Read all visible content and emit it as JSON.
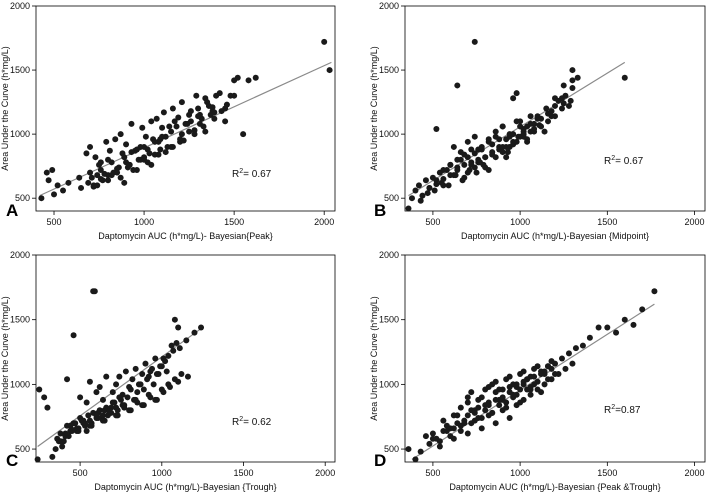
{
  "colors": {
    "points": "#1a1a1a",
    "fit_line": "#8a8a8a",
    "axes": "#000000",
    "background": "#ffffff"
  },
  "panels": [
    {
      "letter": "A",
      "xlabel": "Daptomycin AUC (h*mg/L)- Bayesian{Peak}",
      "ylabel": "Area Under the Curve (h*mg/L)",
      "r2_value": "0.67",
      "r2_suffix": "= 0.67"
    },
    {
      "letter": "B",
      "xlabel": "Daptomycin AUC (h*mg/L)-Bayesian {Midpoint}",
      "ylabel": "Area Under the Curve (h*mg/L)",
      "r2_value": "0.67",
      "r2_suffix": "= 0.67"
    },
    {
      "letter": "C",
      "xlabel": "Daptomycin AUC (h*mg/L)-Bayesian {Trough}",
      "ylabel": "Area Under the Curve (h*mg/L)",
      "r2_value": "0.62",
      "r2_suffix": "= 0.62"
    },
    {
      "letter": "D",
      "xlabel": "Daptomycin AUC (h*mg/L)-Bayesian {Peak &Trough}",
      "ylabel": "Area Under the Curve (h*mg/L)",
      "r2_value": "0.87",
      "r2_suffix": "=0.87"
    }
  ],
  "chart_data": [
    {
      "type": "scatter",
      "panel": "A",
      "xlabel": "Daptomycin AUC (h*mg/L)- Bayesian{Peak}",
      "ylabel": "Area Under the Curve (h*mg/L)",
      "xlim": [
        400,
        2060
      ],
      "ylim": [
        400,
        2000
      ],
      "xticks": [
        500,
        1000,
        1500,
        2000
      ],
      "yticks": [
        500,
        1000,
        1500,
        2000
      ],
      "annotation": "R² = 0.67",
      "fit_line": {
        "x": [
          420,
          2040
        ],
        "y": [
          520,
          1560
        ]
      },
      "points": {
        "x": [
          430,
          470,
          490,
          520,
          460,
          500,
          550,
          580,
          640,
          700,
          720,
          750,
          760,
          800,
          820,
          850,
          880,
          900,
          920,
          950,
          980,
          1000,
          1020,
          1050,
          1080,
          1100,
          1120,
          1150,
          1170,
          1200,
          1230,
          1250,
          1280,
          1300,
          1320,
          1350,
          1380,
          1400,
          1450,
          1480,
          1500,
          1520,
          1550,
          1580,
          1620,
          2000,
          2030,
          680,
          700,
          730,
          760,
          790,
          810,
          840,
          870,
          900,
          930,
          960,
          990,
          1010,
          1040,
          1070,
          1090,
          1110,
          1140,
          1160,
          1190,
          1210,
          1240,
          1260,
          1290,
          1310,
          1340,
          1360,
          1390,
          1420,
          1460,
          760,
          780,
          820,
          860,
          890,
          930,
          970,
          1000,
          1030,
          1060,
          1100,
          1130,
          1180,
          1210,
          1260,
          1300,
          1340,
          1380,
          1430,
          1500,
          720,
          740,
          800,
          830,
          870,
          910,
          940,
          980,
          1020,
          1060,
          1090,
          1150,
          1200,
          1250,
          1310,
          1370,
          650,
          690,
          710,
          740,
          770,
          800,
          850,
          890,
          920,
          960,
          1000,
          1040,
          1080,
          1120,
          1160,
          1220,
          1280,
          1330,
          1390,
          1450
        ],
        "y": [
          500,
          640,
          720,
          600,
          700,
          530,
          560,
          620,
          660,
          700,
          590,
          760,
          650,
          800,
          680,
          730,
          850,
          780,
          760,
          870,
          900,
          820,
          880,
          960,
          940,
          1050,
          980,
          1020,
          1100,
          960,
          1080,
          1150,
          1030,
          1200,
          1120,
          1250,
          1180,
          1300,
          1100,
          1300,
          1420,
          1440,
          1000,
          1420,
          1440,
          1720,
          1500,
          850,
          900,
          820,
          780,
          940,
          870,
          960,
          1000,
          920,
          1080,
          880,
          1050,
          980,
          1100,
          1120,
          960,
          1170,
          1060,
          1200,
          1130,
          1250,
          1080,
          1180,
          1300,
          1150,
          1280,
          1220,
          1170,
          1320,
          1230,
          720,
          690,
          780,
          740,
          820,
          860,
          800,
          900,
          850,
          940,
          980,
          900,
          1060,
          1000,
          1100,
          1140,
          1020,
          1210,
          1180,
          1300,
          600,
          680,
          640,
          700,
          660,
          740,
          720,
          800,
          780,
          840,
          880,
          900,
          940,
          1020,
          1080,
          1150,
          580,
          620,
          660,
          600,
          640,
          680,
          700,
          620,
          760,
          720,
          800,
          760,
          840,
          860,
          900,
          950,
          1000,
          1060,
          1120,
          1200
        ]
      }
    },
    {
      "type": "scatter",
      "panel": "B",
      "xlabel": "Daptomycin AUC (h*mg/L)-Bayesian {Midpoint}",
      "ylabel": "Area Under the Curve (h*mg/L)",
      "xlim": [
        340,
        2060
      ],
      "ylim": [
        400,
        2000
      ],
      "xticks": [
        500,
        1000,
        1500,
        2000
      ],
      "yticks": [
        500,
        1000,
        1500,
        2000
      ],
      "annotation": "R² = 0.67",
      "fit_line": {
        "x": [
          360,
          1600
        ],
        "y": [
          520,
          1560
        ]
      },
      "points": {
        "x": [
          360,
          380,
          400,
          420,
          440,
          460,
          480,
          500,
          520,
          540,
          560,
          580,
          600,
          620,
          640,
          660,
          680,
          700,
          720,
          740,
          760,
          780,
          800,
          820,
          840,
          860,
          880,
          900,
          920,
          940,
          960,
          980,
          1000,
          1020,
          1040,
          1060,
          1080,
          1100,
          1150,
          1200,
          1250,
          1300,
          1330,
          1600,
          740,
          640,
          520,
          620,
          660,
          700,
          740,
          780,
          820,
          860,
          900,
          940,
          980,
          1020,
          1060,
          1100,
          1140,
          1180,
          1220,
          1260,
          1300,
          560,
          600,
          640,
          680,
          720,
          760,
          800,
          840,
          880,
          920,
          960,
          1000,
          1040,
          1080,
          1120,
          1160,
          1200,
          1240,
          1280,
          480,
          520,
          560,
          600,
          640,
          680,
          720,
          760,
          800,
          840,
          880,
          920,
          960,
          1000,
          1040,
          1080,
          1120,
          1160,
          1200,
          1250,
          1300,
          900,
          930,
          960,
          990,
          1020,
          700,
          740,
          770,
          820,
          860,
          900,
          940,
          980,
          1020,
          1060,
          1110,
          1180,
          1240,
          1290,
          430,
          470,
          510,
          550,
          590,
          630,
          670,
          710,
          750,
          790
        ],
        "y": [
          420,
          500,
          560,
          600,
          520,
          640,
          580,
          660,
          610,
          700,
          650,
          720,
          760,
          680,
          740,
          800,
          760,
          820,
          880,
          850,
          780,
          900,
          820,
          940,
          860,
          980,
          900,
          1060,
          960,
          1000,
          1280,
          1320,
          1100,
          1040,
          1060,
          1140,
          1080,
          1120,
          1200,
          1280,
          1380,
          1500,
          1440,
          1440,
          1720,
          1380,
          1040,
          900,
          860,
          940,
          980,
          880,
          960,
          1020,
          1060,
          980,
          1100,
          1020,
          1080,
          1140,
          1020,
          1180,
          1260,
          1300,
          1420,
          720,
          760,
          800,
          840,
          780,
          880,
          820,
          920,
          960,
          900,
          1000,
          1060,
          960,
          1040,
          1120,
          1160,
          1220,
          1280,
          1220,
          580,
          640,
          600,
          680,
          720,
          660,
          760,
          800,
          740,
          840,
          880,
          820,
          920,
          980,
          940,
          1020,
          1060,
          1100,
          1140,
          1240,
          1360,
          900,
          860,
          940,
          980,
          1000,
          700,
          740,
          780,
          720,
          820,
          860,
          900,
          940,
          980,
          1020,
          1070,
          1140,
          1200,
          1260,
          480,
          540,
          560,
          620,
          600,
          680,
          640,
          720,
          700,
          760
        ]
      }
    },
    {
      "type": "scatter",
      "panel": "C",
      "xlabel": "Daptomycin AUC (h*mg/L)-Bayesian {Trough}",
      "ylabel": "Area Under the Curve (h*mg/L)",
      "xlim": [
        230,
        2060
      ],
      "ylim": [
        400,
        2000
      ],
      "xticks": [
        500,
        1000,
        1500,
        2000
      ],
      "yticks": [
        500,
        1000,
        1500,
        2000
      ],
      "annotation": "R² = 0.62",
      "fit_line": {
        "x": [
          240,
          1250
        ],
        "y": [
          520,
          1440
        ]
      },
      "points": {
        "x": [
          240,
          250,
          280,
          300,
          330,
          350,
          370,
          390,
          410,
          430,
          450,
          470,
          490,
          510,
          530,
          550,
          570,
          590,
          610,
          630,
          650,
          670,
          690,
          710,
          730,
          750,
          770,
          790,
          810,
          830,
          850,
          870,
          890,
          910,
          930,
          950,
          970,
          990,
          1010,
          1030,
          1060,
          1080,
          1100,
          1150,
          1200,
          1240,
          580,
          460,
          420,
          500,
          540,
          560,
          600,
          620,
          640,
          660,
          700,
          720,
          740,
          760,
          780,
          800,
          820,
          840,
          860,
          880,
          900,
          920,
          940,
          960,
          980,
          1000,
          1020,
          1040,
          1070,
          1090,
          1110,
          360,
          380,
          400,
          420,
          440,
          460,
          480,
          500,
          520,
          540,
          560,
          580,
          600,
          620,
          640,
          660,
          680,
          700,
          720,
          740,
          440,
          480,
          520,
          560,
          600,
          640,
          680,
          720,
          760,
          800,
          840,
          880,
          920,
          960,
          1000,
          1040,
          1080,
          1120,
          380,
          410,
          450,
          490,
          530,
          570,
          610,
          650,
          690,
          730,
          770,
          810,
          850,
          890,
          930,
          970,
          1010,
          1050,
          1100,
          1160
        ],
        "y": [
          420,
          960,
          900,
          820,
          440,
          500,
          560,
          520,
          620,
          600,
          650,
          700,
          640,
          720,
          680,
          760,
          700,
          1720,
          780,
          740,
          800,
          760,
          820,
          860,
          800,
          880,
          840,
          900,
          960,
          880,
          940,
          1000,
          960,
          1040,
          1100,
          1000,
          1080,
          1140,
          1200,
          1100,
          1300,
          1500,
          1440,
          1340,
          1400,
          1440,
          1720,
          1380,
          1040,
          900,
          860,
          1020,
          940,
          980,
          880,
          1060,
          940,
          1000,
          1060,
          920,
          1100,
          980,
          1040,
          1120,
          1000,
          1080,
          1160,
          1060,
          1120,
          1200,
          1080,
          1140,
          1180,
          1220,
          1260,
          1320,
          1280,
          580,
          620,
          560,
          680,
          640,
          700,
          660,
          740,
          700,
          640,
          720,
          780,
          740,
          800,
          760,
          820,
          780,
          860,
          820,
          900,
          680,
          640,
          720,
          680,
          760,
          720,
          800,
          760,
          840,
          800,
          880,
          840,
          920,
          880,
          960,
          1000,
          1040,
          1080,
          560,
          600,
          640,
          660,
          700,
          680,
          740,
          720,
          780,
          760,
          820,
          800,
          860,
          840,
          900,
          880,
          940,
          980,
          1020,
          1060
        ]
      }
    },
    {
      "type": "scatter",
      "panel": "D",
      "xlabel": "Daptomycin AUC (h*mg/L)-Bayesian {Peak &Trough}",
      "ylabel": "Area Under the Curve (h*mg/L)",
      "xlim": [
        340,
        2060
      ],
      "ylim": [
        400,
        2000
      ],
      "xticks": [
        500,
        1000,
        1500,
        2000
      ],
      "yticks": [
        500,
        1000,
        1500,
        2000
      ],
      "annotation": "R² =0.87",
      "fit_line": {
        "x": [
          380,
          1770
        ],
        "y": [
          420,
          1620
        ]
      },
      "points": {
        "x": [
          360,
          400,
          430,
          460,
          480,
          500,
          520,
          540,
          560,
          580,
          600,
          620,
          640,
          660,
          680,
          700,
          720,
          740,
          760,
          780,
          800,
          820,
          840,
          860,
          880,
          900,
          920,
          940,
          960,
          980,
          1000,
          1020,
          1040,
          1060,
          1080,
          1100,
          1120,
          1140,
          1160,
          1180,
          1200,
          1240,
          1280,
          1320,
          1360,
          1400,
          1450,
          1500,
          1550,
          1600,
          1650,
          1700,
          1770,
          560,
          600,
          640,
          680,
          720,
          760,
          800,
          840,
          880,
          920,
          960,
          1000,
          1040,
          1080,
          1120,
          1160,
          1200,
          500,
          540,
          580,
          620,
          660,
          700,
          740,
          780,
          820,
          860,
          900,
          940,
          980,
          1020,
          1060,
          1100,
          1140,
          1180,
          1220,
          1260,
          1300,
          820,
          860,
          900,
          940,
          980,
          1020,
          1060,
          1100,
          1140,
          1180,
          620,
          660,
          700,
          740,
          780,
          820,
          860,
          900,
          940,
          980,
          1020,
          1060,
          700,
          720,
          760,
          800,
          840,
          880,
          920,
          960,
          1000,
          1040,
          1080,
          1120,
          1160
        ],
        "y": [
          500,
          420,
          480,
          600,
          540,
          620,
          580,
          560,
          640,
          680,
          600,
          660,
          700,
          640,
          720,
          760,
          700,
          780,
          820,
          740,
          800,
          860,
          780,
          880,
          840,
          900,
          860,
          940,
          900,
          980,
          960,
          1000,
          1040,
          980,
          1060,
          1020,
          1100,
          1080,
          1140,
          1120,
          1160,
          1200,
          1240,
          1280,
          1300,
          1360,
          1440,
          1440,
          1400,
          1500,
          1460,
          1580,
          1720,
          720,
          660,
          760,
          700,
          800,
          740,
          840,
          780,
          880,
          820,
          920,
          860,
          960,
          1000,
          940,
          1040,
          1080,
          580,
          520,
          640,
          580,
          680,
          620,
          720,
          660,
          760,
          700,
          800,
          740,
          840,
          880,
          920,
          960,
          1000,
          1040,
          1080,
          1120,
          1160,
          980,
          1020,
          960,
          1060,
          1000,
          1100,
          1060,
          1140,
          1100,
          1180,
          760,
          820,
          860,
          800,
          900,
          840,
          940,
          880,
          980,
          920,
          1020,
          960,
          900,
          940,
          880,
          960,
          1000,
          960,
          1040,
          1000,
          1080,
          1040,
          1120,
          1080,
          1140
        ]
      }
    }
  ]
}
